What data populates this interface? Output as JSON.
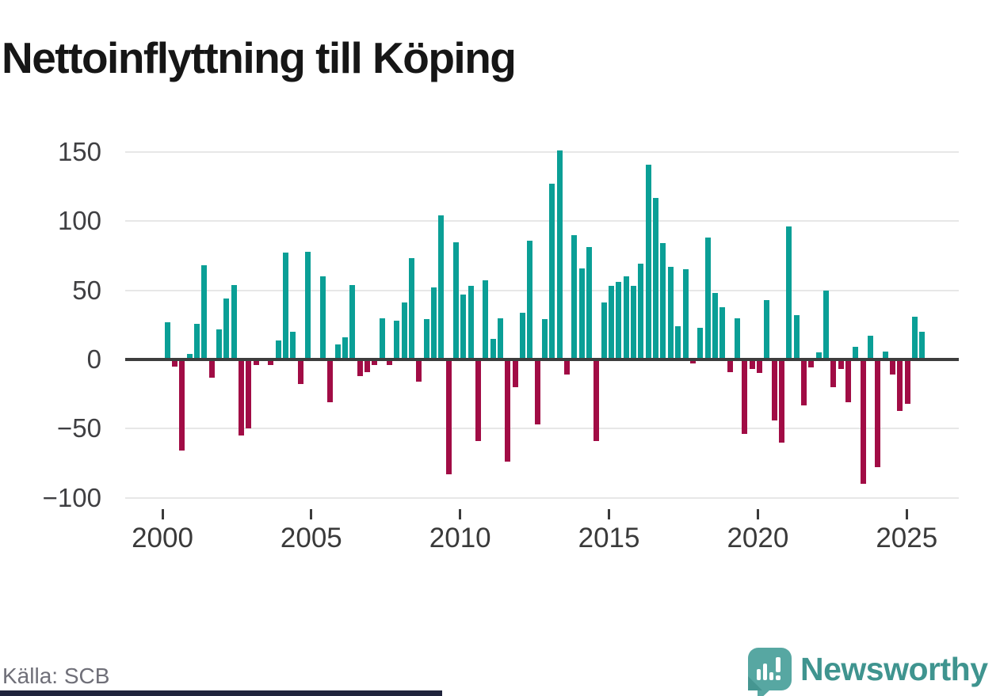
{
  "title": "Nettoinflyttning till Köping",
  "source": "Källa: SCB",
  "brand": {
    "name": "Newsworthy",
    "icon": "newsworthy-speech-bubble-chart-icon"
  },
  "colors": {
    "positive_bar": "#0a9f96",
    "negative_bar": "#a10c45",
    "zero_axis": "#3d3d3d",
    "gridline": "#e7e7e7",
    "tick_label": "#3f3f42",
    "title_text": "#161616",
    "source_text": "#6f6f78",
    "brand_teal": "#3f948f",
    "brand_icon_teal": "#57a7a2",
    "bottom_strip_navy": "#20243c"
  },
  "y_axis": {
    "ticks": [
      {
        "value": 150,
        "label": "150"
      },
      {
        "value": 100,
        "label": "100"
      },
      {
        "value": 50,
        "label": "50"
      },
      {
        "value": 0,
        "label": "0"
      },
      {
        "value": -50,
        "label": "−50"
      },
      {
        "value": -100,
        "label": "−100"
      }
    ]
  },
  "x_axis": {
    "tick_years": [
      "2000",
      "2005",
      "2010",
      "2015",
      "2020",
      "2025"
    ]
  },
  "chart_data": {
    "type": "bar",
    "title": "Nettoinflyttning till Köping",
    "frequency": "quarterly",
    "xlabel": "",
    "ylabel": "",
    "ylim": [
      -100,
      150
    ],
    "grid": "horizontal",
    "legend": "none",
    "series": [
      {
        "name": "Nettoinflyttning",
        "years": [
          {
            "year": 2000,
            "values": [
              27,
              -5,
              -66,
              4
            ]
          },
          {
            "year": 2001,
            "values": [
              26,
              68,
              -13,
              22
            ]
          },
          {
            "year": 2002,
            "values": [
              44,
              54,
              -55,
              -50
            ]
          },
          {
            "year": 2003,
            "values": [
              -4,
              0,
              -4,
              14
            ]
          },
          {
            "year": 2004,
            "values": [
              77,
              20,
              -18,
              78
            ]
          },
          {
            "year": 2005,
            "values": [
              0,
              60,
              -31,
              11
            ]
          },
          {
            "year": 2006,
            "values": [
              16,
              54,
              -12,
              -9
            ]
          },
          {
            "year": 2007,
            "values": [
              -4,
              30,
              -4,
              28
            ]
          },
          {
            "year": 2008,
            "values": [
              41,
              73,
              -16,
              29
            ]
          },
          {
            "year": 2009,
            "values": [
              52,
              104,
              -83,
              85
            ]
          },
          {
            "year": 2010,
            "values": [
              47,
              53,
              -59,
              57
            ]
          },
          {
            "year": 2011,
            "values": [
              15,
              30,
              -74,
              -20
            ]
          },
          {
            "year": 2012,
            "values": [
              34,
              86,
              -47,
              29
            ]
          },
          {
            "year": 2013,
            "values": [
              127,
              151,
              -11,
              90
            ]
          },
          {
            "year": 2014,
            "values": [
              66,
              81,
              -59,
              41
            ]
          },
          {
            "year": 2015,
            "values": [
              53,
              56,
              60,
              53
            ]
          },
          {
            "year": 2016,
            "values": [
              69,
              141,
              117,
              84
            ]
          },
          {
            "year": 2017,
            "values": [
              67,
              24,
              65,
              -3
            ]
          },
          {
            "year": 2018,
            "values": [
              23,
              88,
              48,
              38
            ]
          },
          {
            "year": 2019,
            "values": [
              -9,
              30,
              -54,
              -7
            ]
          },
          {
            "year": 2020,
            "values": [
              -10,
              43,
              -44,
              -60
            ]
          },
          {
            "year": 2021,
            "values": [
              96,
              32,
              -33,
              -6
            ]
          },
          {
            "year": 2022,
            "values": [
              5,
              50,
              -20,
              -7
            ]
          },
          {
            "year": 2023,
            "values": [
              -31,
              9,
              -90,
              17
            ]
          },
          {
            "year": 2024,
            "values": [
              -78,
              6,
              -11,
              -37
            ]
          },
          {
            "year": 2025,
            "values": [
              -32,
              31,
              20
            ]
          }
        ]
      }
    ]
  }
}
